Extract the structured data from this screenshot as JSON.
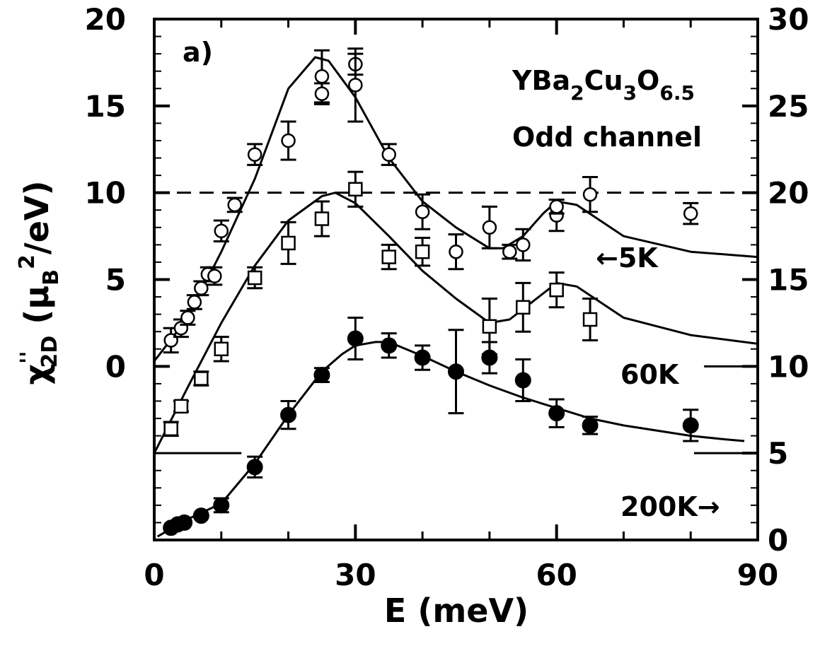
{
  "chart_data": {
    "type": "scatter",
    "panel_label": "a)",
    "compound": {
      "base": "YBa",
      "s1": "2",
      "m1": "Cu",
      "s2": "3",
      "m2": "O",
      "s3": "6.5"
    },
    "channel": "Odd channel",
    "xlabel": "E  (meV)",
    "ylabel": {
      "chi": "χ",
      "sup": "''",
      "sub": "2D",
      "open": "  (",
      "mu": "μ",
      "musub": "B",
      "sq": "2",
      "unit": "/eV)"
    },
    "xlim": [
      0,
      90
    ],
    "ylim_left": [
      -10,
      20
    ],
    "ylim_right": [
      0,
      30
    ],
    "x_ticks": [
      "0",
      "30",
      "60",
      "90"
    ],
    "y_ticks_left": [
      "0",
      "5",
      "10",
      "15",
      "20"
    ],
    "y_ticks_right": [
      "0",
      "5",
      "10",
      "15",
      "20",
      "25",
      "30"
    ],
    "temperature_labels": {
      "t5": "←5K",
      "t60": "60K",
      "t200": "200K→"
    },
    "reference_line_y": 10,
    "series": [
      {
        "name": "5K",
        "marker": "open-circle",
        "points": [
          {
            "x": 2.5,
            "y": 1.5,
            "err": 0.7
          },
          {
            "x": 4,
            "y": 2.2,
            "err": 0.5
          },
          {
            "x": 5,
            "y": 2.8,
            "err": 0.4
          },
          {
            "x": 6,
            "y": 3.7,
            "err": 0.4
          },
          {
            "x": 7,
            "y": 4.5,
            "err": 0.4
          },
          {
            "x": 8,
            "y": 5.3,
            "err": 0.4
          },
          {
            "x": 9,
            "y": 5.2,
            "err": 0.5
          },
          {
            "x": 10,
            "y": 7.8,
            "err": 0.6
          },
          {
            "x": 12,
            "y": 9.3,
            "err": 0.4
          },
          {
            "x": 15,
            "y": 12.2,
            "err": 0.6
          },
          {
            "x": 20,
            "y": 13.0,
            "err": 1.1
          },
          {
            "x": 25,
            "y": 16.7,
            "err": 1.5
          },
          {
            "x": 25,
            "y": 15.7,
            "err": 0.6
          },
          {
            "x": 30,
            "y": 17.4,
            "err": 0.6
          },
          {
            "x": 30,
            "y": 16.2,
            "err": 2.1
          },
          {
            "x": 35,
            "y": 12.2,
            "err": 0.6
          },
          {
            "x": 40,
            "y": 8.9,
            "err": 1.0
          },
          {
            "x": 45,
            "y": 6.6,
            "err": 1.0
          },
          {
            "x": 50,
            "y": 8.0,
            "err": 1.2
          },
          {
            "x": 53,
            "y": 6.6,
            "err": 0.4
          },
          {
            "x": 55,
            "y": 7.0,
            "err": 0.9
          },
          {
            "x": 60,
            "y": 8.7,
            "err": 0.9
          },
          {
            "x": 60,
            "y": 9.2,
            "err": 0.4
          },
          {
            "x": 65,
            "y": 9.9,
            "err": 1.0
          },
          {
            "x": 80,
            "y": 8.8,
            "err": 0.6
          }
        ],
        "fit": [
          [
            0,
            0.3
          ],
          [
            5,
            2.8
          ],
          [
            10,
            6.6
          ],
          [
            15,
            10.8
          ],
          [
            20,
            16.0
          ],
          [
            24,
            17.8
          ],
          [
            26,
            17.6
          ],
          [
            30,
            15.5
          ],
          [
            35,
            12.0
          ],
          [
            40,
            9.5
          ],
          [
            45,
            8.0
          ],
          [
            50,
            6.8
          ],
          [
            52,
            6.8
          ],
          [
            55,
            7.5
          ],
          [
            58,
            8.8
          ],
          [
            60,
            9.5
          ],
          [
            63,
            9.3
          ],
          [
            70,
            7.5
          ],
          [
            80,
            6.6
          ],
          [
            90,
            6.3
          ]
        ]
      },
      {
        "name": "60K",
        "marker": "open-square",
        "points": [
          {
            "x": 2.5,
            "y": -3.6,
            "err": 0.4
          },
          {
            "x": 4,
            "y": -2.3,
            "err": 0.3
          },
          {
            "x": 7,
            "y": -0.7,
            "err": 0.4
          },
          {
            "x": 10,
            "y": 1.0,
            "err": 0.7
          },
          {
            "x": 15,
            "y": 5.1,
            "err": 0.6
          },
          {
            "x": 20,
            "y": 7.1,
            "err": 1.2
          },
          {
            "x": 25,
            "y": 8.5,
            "err": 1.0
          },
          {
            "x": 30,
            "y": 10.2,
            "err": 1.0
          },
          {
            "x": 35,
            "y": 6.3,
            "err": 0.7
          },
          {
            "x": 40,
            "y": 6.6,
            "err": 0.8
          },
          {
            "x": 50,
            "y": 2.3,
            "err": 1.6
          },
          {
            "x": 55,
            "y": 3.4,
            "err": 1.4
          },
          {
            "x": 60,
            "y": 4.4,
            "err": 1.0
          },
          {
            "x": 65,
            "y": 2.7,
            "err": 1.2
          }
        ],
        "fit": [
          [
            0,
            -5.0
          ],
          [
            5,
            -1.2
          ],
          [
            10,
            2.5
          ],
          [
            15,
            5.8
          ],
          [
            20,
            8.4
          ],
          [
            25,
            9.8
          ],
          [
            27,
            10.0
          ],
          [
            30,
            9.4
          ],
          [
            35,
            7.5
          ],
          [
            40,
            5.5
          ],
          [
            45,
            3.9
          ],
          [
            50,
            2.5
          ],
          [
            53,
            2.7
          ],
          [
            56,
            3.6
          ],
          [
            60,
            4.8
          ],
          [
            63,
            4.6
          ],
          [
            70,
            2.8
          ],
          [
            80,
            1.8
          ],
          [
            90,
            1.3
          ]
        ]
      },
      {
        "name": "200K",
        "marker": "filled-circle",
        "points": [
          {
            "x": 2.5,
            "y": -9.3,
            "err": 0
          },
          {
            "x": 3.5,
            "y": -9.1,
            "err": 0
          },
          {
            "x": 4.5,
            "y": -9.0,
            "err": 0
          },
          {
            "x": 7,
            "y": -8.6,
            "err": 0
          },
          {
            "x": 10,
            "y": -8.0,
            "err": 0.4
          },
          {
            "x": 15,
            "y": -5.8,
            "err": 0.6
          },
          {
            "x": 20,
            "y": -2.8,
            "err": 0.8
          },
          {
            "x": 25,
            "y": -0.5,
            "err": 0.4
          },
          {
            "x": 30,
            "y": 1.6,
            "err": 1.2
          },
          {
            "x": 35,
            "y": 1.2,
            "err": 0.7
          },
          {
            "x": 40,
            "y": 0.5,
            "err": 0.7
          },
          {
            "x": 45,
            "y": -0.3,
            "err": 2.4
          },
          {
            "x": 50,
            "y": 0.5,
            "err": 0.9
          },
          {
            "x": 55,
            "y": -0.8,
            "err": 1.2
          },
          {
            "x": 60,
            "y": -2.7,
            "err": 0.8
          },
          {
            "x": 65,
            "y": -3.4,
            "err": 0.5
          },
          {
            "x": 80,
            "y": -3.4,
            "err": 0.9
          }
        ],
        "fit": [
          [
            0.5,
            -9.8
          ],
          [
            5,
            -8.8
          ],
          [
            10,
            -7.9
          ],
          [
            15,
            -5.6
          ],
          [
            20,
            -2.8
          ],
          [
            25,
            -0.3
          ],
          [
            28,
            0.7
          ],
          [
            30,
            1.2
          ],
          [
            33,
            1.4
          ],
          [
            35,
            1.4
          ],
          [
            40,
            0.6
          ],
          [
            45,
            -0.3
          ],
          [
            50,
            -1.1
          ],
          [
            55,
            -1.8
          ],
          [
            60,
            -2.4
          ],
          [
            65,
            -3.0
          ],
          [
            70,
            -3.4
          ],
          [
            80,
            -4.0
          ],
          [
            85,
            -4.2
          ],
          [
            88,
            -4.3
          ]
        ]
      }
    ],
    "baselines": [
      {
        "series": "60K",
        "y": 0,
        "x_ranges": [
          [
            0,
            2
          ],
          [
            82,
            90
          ]
        ]
      },
      {
        "series": "200K",
        "y": -5,
        "x_ranges": [
          [
            0,
            13
          ],
          [
            80.5,
            90
          ]
        ]
      }
    ]
  }
}
